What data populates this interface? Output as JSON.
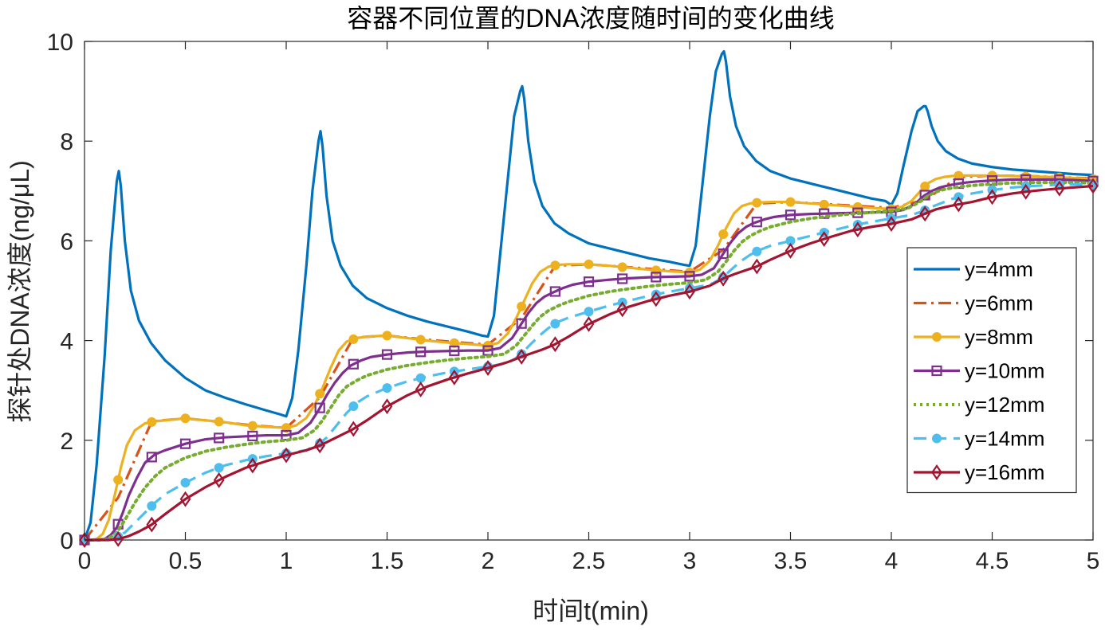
{
  "chart_data": {
    "type": "line",
    "title": "容器不同位置的DNA浓度随时间的变化曲线",
    "xlabel": "时间t(min)",
    "ylabel": "探针处DNA浓度(ng/μL)",
    "xlim": [
      0,
      5
    ],
    "ylim": [
      0,
      10
    ],
    "xticks": [
      "0",
      "0.5",
      "1",
      "1.5",
      "2",
      "2.5",
      "3",
      "3.5",
      "4",
      "4.5",
      "5"
    ],
    "yticks": [
      "0",
      "2",
      "4",
      "6",
      "8",
      "10"
    ],
    "grid": false,
    "legend_position": "right",
    "x": [
      0,
      0.1667,
      0.3333,
      0.5,
      0.6667,
      0.8333,
      1.0,
      1.1667,
      1.3333,
      1.5,
      1.6667,
      1.8333,
      2.0,
      2.1667,
      2.3333,
      2.5,
      2.6667,
      2.8333,
      3.0,
      3.1667,
      3.3333,
      3.5,
      3.6667,
      3.8333,
      4.0,
      4.1667,
      4.3333,
      4.5,
      4.6667,
      4.8333,
      5.0
    ],
    "series": [
      {
        "name": "y=4mm",
        "color": "#0072BD",
        "style": "solid",
        "marker": "none",
        "x": [
          0,
          0.03,
          0.06,
          0.1,
          0.13,
          0.16,
          0.17,
          0.18,
          0.2,
          0.23,
          0.27,
          0.33,
          0.4,
          0.5,
          0.6,
          0.7,
          0.8,
          0.9,
          0.97,
          1.0,
          1.03,
          1.06,
          1.1,
          1.13,
          1.16,
          1.17,
          1.18,
          1.2,
          1.23,
          1.27,
          1.33,
          1.4,
          1.5,
          1.6,
          1.7,
          1.8,
          1.9,
          1.97,
          2.0,
          2.03,
          2.06,
          2.1,
          2.13,
          2.16,
          2.17,
          2.18,
          2.2,
          2.23,
          2.27,
          2.33,
          2.4,
          2.5,
          2.6,
          2.7,
          2.8,
          2.9,
          2.97,
          3.0,
          3.03,
          3.06,
          3.1,
          3.13,
          3.16,
          3.17,
          3.18,
          3.2,
          3.23,
          3.27,
          3.33,
          3.4,
          3.5,
          3.6,
          3.7,
          3.8,
          3.9,
          3.97,
          4.0,
          4.03,
          4.06,
          4.1,
          4.13,
          4.16,
          4.17,
          4.18,
          4.2,
          4.23,
          4.27,
          4.33,
          4.4,
          4.5,
          4.6,
          4.7,
          4.8,
          4.9,
          5.0
        ],
        "values": [
          0,
          0.35,
          1.5,
          3.7,
          5.8,
          7.2,
          7.4,
          7.1,
          6.0,
          5.0,
          4.4,
          3.95,
          3.6,
          3.25,
          3.0,
          2.85,
          2.72,
          2.6,
          2.52,
          2.48,
          2.85,
          3.8,
          5.5,
          7.0,
          8.0,
          8.2,
          7.9,
          6.9,
          6.0,
          5.5,
          5.1,
          4.85,
          4.65,
          4.5,
          4.38,
          4.28,
          4.18,
          4.1,
          4.08,
          4.5,
          5.7,
          7.3,
          8.5,
          9.0,
          9.1,
          8.85,
          8.0,
          7.2,
          6.7,
          6.35,
          6.15,
          5.95,
          5.85,
          5.75,
          5.65,
          5.58,
          5.52,
          5.5,
          5.9,
          7.0,
          8.5,
          9.4,
          9.75,
          9.8,
          9.6,
          8.9,
          8.3,
          7.9,
          7.6,
          7.4,
          7.25,
          7.15,
          7.05,
          6.95,
          6.85,
          6.8,
          6.72,
          6.95,
          7.5,
          8.2,
          8.6,
          8.7,
          8.7,
          8.6,
          8.3,
          8.0,
          7.8,
          7.65,
          7.55,
          7.48,
          7.43,
          7.4,
          7.37,
          7.34,
          7.32
        ]
      },
      {
        "name": "y=6mm",
        "color": "#D95319",
        "style": "dashdot",
        "marker": "none",
        "x": [
          0,
          0.1667,
          0.3333,
          0.5,
          0.6667,
          0.8333,
          1.0,
          1.1667,
          1.3333,
          1.5,
          1.6667,
          1.8333,
          2.0,
          2.1667,
          2.3333,
          2.5,
          2.6667,
          2.8333,
          3.0,
          3.1667,
          3.3333,
          3.5,
          3.6667,
          3.8333,
          4.0,
          4.1667,
          4.3333,
          4.5,
          4.6667,
          4.8333,
          5.0
        ],
        "values": [
          0,
          0.85,
          2.38,
          2.44,
          2.37,
          2.3,
          2.25,
          2.86,
          4.06,
          4.1,
          4.03,
          3.97,
          3.92,
          4.45,
          5.5,
          5.53,
          5.48,
          5.43,
          5.38,
          5.82,
          6.75,
          6.78,
          6.74,
          6.7,
          6.66,
          6.82,
          7.28,
          7.31,
          7.3,
          7.28,
          7.25
        ]
      },
      {
        "name": "y=8mm",
        "color": "#EDB120",
        "style": "solid",
        "marker": "circle",
        "x": [
          0,
          0.03,
          0.06,
          0.09,
          0.12,
          0.15,
          0.18,
          0.21,
          0.25,
          0.3,
          0.35,
          0.4,
          0.5,
          0.6,
          0.7,
          0.8,
          0.9,
          1.0,
          1.05,
          1.1,
          1.14,
          1.18,
          1.22,
          1.26,
          1.3,
          1.35,
          1.4,
          1.5,
          1.6,
          1.7,
          1.8,
          1.9,
          2.0,
          2.05,
          2.1,
          2.14,
          2.18,
          2.22,
          2.26,
          2.3,
          2.35,
          2.4,
          2.5,
          2.6,
          2.7,
          2.8,
          2.9,
          3.0,
          3.05,
          3.1,
          3.14,
          3.18,
          3.22,
          3.26,
          3.3,
          3.35,
          3.4,
          3.5,
          3.6,
          3.7,
          3.8,
          3.9,
          4.0,
          4.05,
          4.1,
          4.14,
          4.18,
          4.22,
          4.26,
          4.3,
          4.35,
          4.4,
          4.5,
          4.6,
          4.7,
          4.8,
          4.9,
          5.0
        ],
        "values": [
          0,
          0.0,
          0.02,
          0.12,
          0.4,
          0.9,
          1.45,
          1.9,
          2.2,
          2.34,
          2.38,
          2.4,
          2.44,
          2.4,
          2.36,
          2.3,
          2.27,
          2.25,
          2.3,
          2.45,
          2.7,
          3.05,
          3.45,
          3.8,
          3.98,
          4.05,
          4.08,
          4.1,
          4.05,
          4.0,
          3.96,
          3.93,
          3.9,
          3.95,
          4.15,
          4.45,
          4.8,
          5.15,
          5.38,
          5.48,
          5.52,
          5.53,
          5.53,
          5.5,
          5.46,
          5.42,
          5.39,
          5.37,
          5.42,
          5.6,
          5.9,
          6.25,
          6.55,
          6.7,
          6.75,
          6.77,
          6.78,
          6.78,
          6.75,
          6.72,
          6.69,
          6.66,
          6.64,
          6.68,
          6.8,
          6.98,
          7.15,
          7.24,
          7.28,
          7.3,
          7.31,
          7.31,
          7.31,
          7.3,
          7.29,
          7.28,
          7.26,
          7.24
        ]
      },
      {
        "name": "y=10mm",
        "color": "#7E2F8E",
        "style": "solid",
        "marker": "square",
        "x": [
          0,
          0.05,
          0.1,
          0.13,
          0.16,
          0.19,
          0.22,
          0.26,
          0.3,
          0.35,
          0.4,
          0.5,
          0.6,
          0.7,
          0.8,
          0.9,
          1.0,
          1.06,
          1.12,
          1.16,
          1.2,
          1.24,
          1.28,
          1.32,
          1.37,
          1.42,
          1.5,
          1.6,
          1.7,
          1.8,
          1.9,
          2.0,
          2.06,
          2.12,
          2.16,
          2.2,
          2.24,
          2.28,
          2.32,
          2.37,
          2.42,
          2.5,
          2.6,
          2.7,
          2.8,
          2.9,
          3.0,
          3.06,
          3.12,
          3.16,
          3.2,
          3.24,
          3.28,
          3.32,
          3.37,
          3.42,
          3.5,
          3.6,
          3.7,
          3.8,
          3.9,
          4.0,
          4.06,
          4.12,
          4.16,
          4.2,
          4.24,
          4.28,
          4.32,
          4.37,
          4.42,
          4.5,
          4.6,
          4.7,
          4.8,
          4.9,
          5.0
        ],
        "values": [
          0,
          0.0,
          0.02,
          0.1,
          0.25,
          0.55,
          0.9,
          1.25,
          1.55,
          1.72,
          1.8,
          1.93,
          2.02,
          2.06,
          2.08,
          2.1,
          2.1,
          2.15,
          2.35,
          2.6,
          2.9,
          3.15,
          3.35,
          3.5,
          3.6,
          3.67,
          3.72,
          3.76,
          3.78,
          3.79,
          3.8,
          3.8,
          3.85,
          4.05,
          4.3,
          4.55,
          4.75,
          4.88,
          4.96,
          5.05,
          5.12,
          5.18,
          5.22,
          5.25,
          5.27,
          5.28,
          5.29,
          5.32,
          5.45,
          5.7,
          5.95,
          6.15,
          6.28,
          6.36,
          6.43,
          6.48,
          6.52,
          6.54,
          6.55,
          6.56,
          6.57,
          6.58,
          6.62,
          6.75,
          6.9,
          7.0,
          7.07,
          7.11,
          7.14,
          7.17,
          7.19,
          7.21,
          7.23,
          7.23,
          7.23,
          7.22,
          7.2
        ]
      },
      {
        "name": "y=12mm",
        "color": "#77AC30",
        "style": "dotted",
        "marker": "none",
        "x": [
          0,
          0.08,
          0.12,
          0.16,
          0.2,
          0.25,
          0.3,
          0.35,
          0.4,
          0.5,
          0.6,
          0.7,
          0.8,
          0.9,
          1.0,
          1.08,
          1.14,
          1.18,
          1.22,
          1.26,
          1.3,
          1.35,
          1.4,
          1.5,
          1.6,
          1.7,
          1.8,
          1.9,
          2.0,
          2.08,
          2.14,
          2.18,
          2.22,
          2.26,
          2.3,
          2.35,
          2.4,
          2.5,
          2.6,
          2.7,
          2.8,
          2.9,
          3.0,
          3.08,
          3.14,
          3.18,
          3.22,
          3.26,
          3.3,
          3.35,
          3.4,
          3.5,
          3.6,
          3.7,
          3.8,
          3.9,
          4.0,
          4.08,
          4.14,
          4.18,
          4.22,
          4.26,
          4.3,
          4.35,
          4.4,
          4.5,
          4.6,
          4.7,
          4.8,
          4.9,
          5.0
        ],
        "values": [
          0,
          0.0,
          0.03,
          0.15,
          0.4,
          0.75,
          1.05,
          1.28,
          1.45,
          1.65,
          1.78,
          1.86,
          1.92,
          1.97,
          2.0,
          2.05,
          2.2,
          2.4,
          2.65,
          2.9,
          3.08,
          3.2,
          3.3,
          3.42,
          3.5,
          3.56,
          3.61,
          3.65,
          3.68,
          3.73,
          3.9,
          4.1,
          4.3,
          4.48,
          4.6,
          4.7,
          4.78,
          4.9,
          4.98,
          5.04,
          5.09,
          5.13,
          5.16,
          5.22,
          5.38,
          5.58,
          5.8,
          5.98,
          6.1,
          6.2,
          6.28,
          6.38,
          6.45,
          6.5,
          6.54,
          6.57,
          6.6,
          6.65,
          6.78,
          6.9,
          6.98,
          7.03,
          7.06,
          7.09,
          7.11,
          7.14,
          7.16,
          7.17,
          7.17,
          7.17,
          7.16
        ]
      },
      {
        "name": "y=14mm",
        "color": "#4DBEEE",
        "style": "dashed",
        "marker": "circle",
        "x": [
          0,
          0.1,
          0.15,
          0.2,
          0.25,
          0.3,
          0.35,
          0.4,
          0.5,
          0.6,
          0.7,
          0.8,
          0.9,
          1.0,
          1.1,
          1.16,
          1.2,
          1.25,
          1.3,
          1.35,
          1.4,
          1.5,
          1.6,
          1.7,
          1.8,
          1.9,
          2.0,
          2.1,
          2.16,
          2.2,
          2.25,
          2.3,
          2.35,
          2.4,
          2.5,
          2.6,
          2.7,
          2.8,
          2.9,
          3.0,
          3.1,
          3.16,
          3.2,
          3.25,
          3.3,
          3.35,
          3.4,
          3.5,
          3.6,
          3.7,
          3.8,
          3.9,
          4.0,
          4.1,
          4.16,
          4.2,
          4.25,
          4.3,
          4.35,
          4.4,
          4.5,
          4.6,
          4.7,
          4.8,
          4.9,
          5.0
        ],
        "values": [
          0,
          0.0,
          0.03,
          0.15,
          0.35,
          0.55,
          0.75,
          0.92,
          1.15,
          1.35,
          1.5,
          1.6,
          1.68,
          1.74,
          1.8,
          1.92,
          2.05,
          2.3,
          2.55,
          2.75,
          2.88,
          3.05,
          3.18,
          3.28,
          3.36,
          3.42,
          3.48,
          3.55,
          3.7,
          3.88,
          4.08,
          4.25,
          4.38,
          4.46,
          4.58,
          4.7,
          4.8,
          4.9,
          4.98,
          5.05,
          5.12,
          5.25,
          5.4,
          5.58,
          5.72,
          5.82,
          5.9,
          6.0,
          6.1,
          6.2,
          6.3,
          6.38,
          6.45,
          6.52,
          6.6,
          6.68,
          6.76,
          6.84,
          6.9,
          6.95,
          7.02,
          7.07,
          7.1,
          7.12,
          7.13,
          7.13
        ]
      },
      {
        "name": "y=16mm",
        "color": "#A2142F",
        "style": "solid",
        "marker": "diamond",
        "x": [
          0,
          0.12,
          0.17,
          0.22,
          0.27,
          0.33,
          0.4,
          0.5,
          0.6,
          0.7,
          0.8,
          0.9,
          1.0,
          1.1,
          1.17,
          1.22,
          1.27,
          1.33,
          1.4,
          1.5,
          1.6,
          1.7,
          1.8,
          1.9,
          2.0,
          2.1,
          2.17,
          2.22,
          2.27,
          2.33,
          2.4,
          2.5,
          2.6,
          2.7,
          2.8,
          2.9,
          3.0,
          3.1,
          3.17,
          3.22,
          3.27,
          3.33,
          3.4,
          3.5,
          3.6,
          3.7,
          3.8,
          3.9,
          4.0,
          4.1,
          4.17,
          4.22,
          4.27,
          4.33,
          4.4,
          4.5,
          4.6,
          4.7,
          4.8,
          4.9,
          5.0
        ],
        "values": [
          0,
          0.0,
          0.02,
          0.08,
          0.17,
          0.3,
          0.52,
          0.82,
          1.06,
          1.27,
          1.45,
          1.58,
          1.7,
          1.8,
          1.9,
          2.0,
          2.1,
          2.22,
          2.4,
          2.68,
          2.9,
          3.08,
          3.22,
          3.34,
          3.45,
          3.57,
          3.68,
          3.75,
          3.82,
          3.92,
          4.08,
          4.33,
          4.52,
          4.68,
          4.8,
          4.9,
          4.98,
          5.1,
          5.25,
          5.33,
          5.4,
          5.48,
          5.62,
          5.8,
          5.95,
          6.08,
          6.2,
          6.28,
          6.34,
          6.43,
          6.55,
          6.63,
          6.68,
          6.73,
          6.78,
          6.88,
          6.95,
          7.0,
          7.04,
          7.07,
          7.1
        ]
      }
    ]
  }
}
